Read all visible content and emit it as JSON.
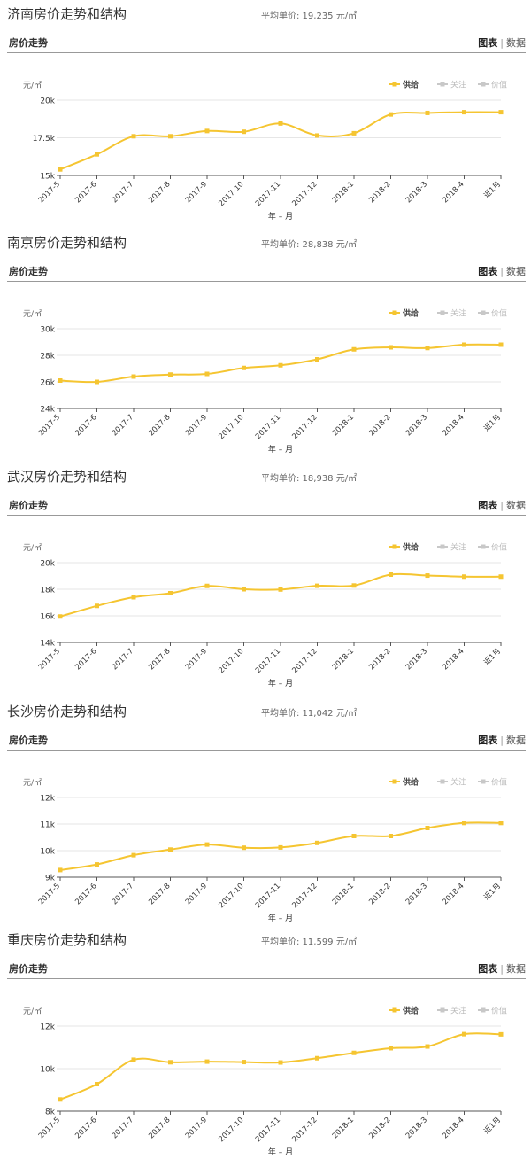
{
  "months": [
    "2017-5",
    "2017-6",
    "2017-7",
    "2017-8",
    "2017-9",
    "2017-10",
    "2017-11",
    "2017-12",
    "2018-1",
    "2018-2",
    "2018-3",
    "2018-4",
    "近1月"
  ],
  "colors": {
    "series": "#f5c531",
    "legend_inactive": "#c8c8c8",
    "grid": "#e6e6e6",
    "axis": "#555555"
  },
  "chart_data": [
    {
      "type": "line",
      "title": "济南房价走势和结构",
      "avg_price": "平均单价:  19,235 元/㎡",
      "subtitle": "房价走势",
      "tab_chart": "图表",
      "tab_data": "数据",
      "ylabel": "元/㎡",
      "xlabel": "年 – 月",
      "yticks": [
        "15k",
        "17.5k",
        "20k"
      ],
      "ylim": [
        15000,
        20000
      ],
      "categories": [
        "2017-5",
        "2017-6",
        "2017-7",
        "2017-8",
        "2017-9",
        "2017-10",
        "2017-11",
        "2017-12",
        "2018-1",
        "2018-2",
        "2018-3",
        "2018-4",
        "近1月"
      ],
      "legend": [
        "供给",
        "关注",
        "价值"
      ],
      "series": [
        {
          "name": "供给",
          "values": [
            15400,
            16400,
            17600,
            17600,
            17950,
            17900,
            18450,
            17650,
            17800,
            19050,
            19150,
            19200,
            19200
          ]
        }
      ]
    },
    {
      "type": "line",
      "title": "南京房价走势和结构",
      "avg_price": "平均单价:  28,838 元/㎡",
      "subtitle": "房价走势",
      "tab_chart": "图表",
      "tab_data": "数据",
      "ylabel": "元/㎡",
      "xlabel": "年 – 月",
      "yticks": [
        "24k",
        "26k",
        "28k",
        "30k"
      ],
      "ylim": [
        24000,
        30000
      ],
      "categories": [
        "2017-5",
        "2017-6",
        "2017-7",
        "2017-8",
        "2017-9",
        "2017-10",
        "2017-11",
        "2017-12",
        "2018-1",
        "2018-2",
        "2018-3",
        "2018-4",
        "近1月"
      ],
      "legend": [
        "供给",
        "关注",
        "价值"
      ],
      "series": [
        {
          "name": "供给",
          "values": [
            26100,
            26000,
            26400,
            26550,
            26600,
            27050,
            27250,
            27700,
            28450,
            28600,
            28550,
            28800,
            28800
          ]
        }
      ]
    },
    {
      "type": "line",
      "title": "武汉房价走势和结构",
      "avg_price": "平均单价:  18,938 元/㎡",
      "subtitle": "房价走势",
      "tab_chart": "图表",
      "tab_data": "数据",
      "ylabel": "元/㎡",
      "xlabel": "年 – 月",
      "yticks": [
        "14k",
        "16k",
        "18k",
        "20k"
      ],
      "ylim": [
        14000,
        20000
      ],
      "categories": [
        "2017-5",
        "2017-6",
        "2017-7",
        "2017-8",
        "2017-9",
        "2017-10",
        "2017-11",
        "2017-12",
        "2018-1",
        "2018-2",
        "2018-3",
        "2018-4",
        "近1月"
      ],
      "legend": [
        "供给",
        "关注",
        "价值"
      ],
      "series": [
        {
          "name": "供给",
          "values": [
            15950,
            16750,
            17400,
            17700,
            18250,
            18000,
            17980,
            18260,
            18280,
            19100,
            19030,
            18950,
            18950
          ]
        }
      ]
    },
    {
      "type": "line",
      "title": "长沙房价走势和结构",
      "avg_price": "平均单价:  11,042 元/㎡",
      "subtitle": "房价走势",
      "tab_chart": "图表",
      "tab_data": "数据",
      "ylabel": "元/㎡",
      "xlabel": "年 – 月",
      "yticks": [
        "9k",
        "10k",
        "11k",
        "12k"
      ],
      "ylim": [
        9000,
        12000
      ],
      "categories": [
        "2017-5",
        "2017-6",
        "2017-7",
        "2017-8",
        "2017-9",
        "2017-10",
        "2017-11",
        "2017-12",
        "2018-1",
        "2018-2",
        "2018-3",
        "2018-4",
        "近1月"
      ],
      "legend": [
        "供给",
        "关注",
        "价值"
      ],
      "series": [
        {
          "name": "供给",
          "values": [
            9270,
            9480,
            9830,
            10040,
            10230,
            10110,
            10120,
            10290,
            10550,
            10550,
            10850,
            11040,
            11040
          ]
        }
      ]
    },
    {
      "type": "line",
      "title": "重庆房价走势和结构",
      "avg_price": "平均单价:  11,599 元/㎡",
      "subtitle": "房价走势",
      "tab_chart": "图表",
      "tab_data": "数据",
      "ylabel": "元/㎡",
      "xlabel": "年 – 月",
      "yticks": [
        "8k",
        "10k",
        "12k"
      ],
      "ylim": [
        8000,
        12000
      ],
      "categories": [
        "2017-5",
        "2017-6",
        "2017-7",
        "2017-8",
        "2017-9",
        "2017-10",
        "2017-11",
        "2017-12",
        "2018-1",
        "2018-2",
        "2018-3",
        "2018-4",
        "近1月"
      ],
      "legend": [
        "供给",
        "关注",
        "价值"
      ],
      "series": [
        {
          "name": "供给",
          "values": [
            8550,
            9270,
            10420,
            10300,
            10330,
            10310,
            10290,
            10490,
            10740,
            10960,
            11040,
            11620,
            11610
          ]
        }
      ]
    }
  ]
}
